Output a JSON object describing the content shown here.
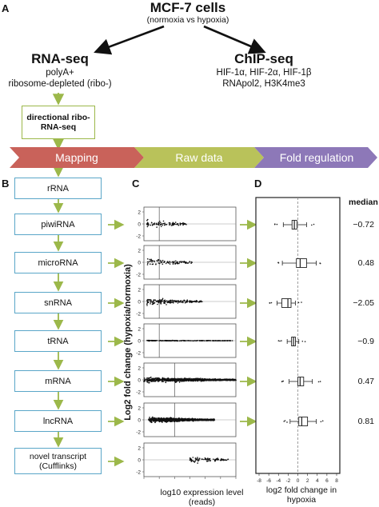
{
  "panels": {
    "a": "A",
    "b": "B",
    "c": "C",
    "d": "D"
  },
  "top": {
    "title": "MCF-7 cells",
    "subtitle": "(normoxia vs hypoxia)"
  },
  "rnaseq": {
    "title": "RNA-seq",
    "lines": [
      "polyA+",
      "ribosome-depleted (ribo-)"
    ]
  },
  "chipseq": {
    "title": "ChIP-seq",
    "lines": [
      "HIF-1α, HIF-2α, HIF-1β",
      "RNApol2, H3K4me3"
    ]
  },
  "directional_box": "directional ribo-RNA-seq",
  "band": {
    "labels": [
      "Mapping",
      "Raw data",
      "Fold regulation"
    ],
    "colors": [
      "#c9625a",
      "#b9c25a",
      "#8d78b8"
    ]
  },
  "flow": {
    "items": [
      "rRNA",
      "piwiRNA",
      "microRNA",
      "snRNA",
      "tRNA",
      "mRNA",
      "lncRNA",
      "novel transcript (Cufflinks)"
    ]
  },
  "chart_data": [
    {
      "type": "scatter",
      "panel": "C",
      "title": "",
      "xlabel": "log10 expression level (reads)",
      "ylabel": "Log2 fold change (hypoxia/normoxia)",
      "xlim": [
        0,
        6
      ],
      "xticks": [
        "0",
        "1",
        "2",
        "3",
        "4",
        "5",
        "6"
      ],
      "yticks": [
        "2",
        "0",
        "-2"
      ],
      "series": [
        {
          "category": "piwiRNA",
          "xrange": [
            0.2,
            2.8
          ],
          "density": "sparse",
          "threshold": 1
        },
        {
          "category": "microRNA",
          "xrange": [
            0.2,
            3.2
          ],
          "density": "sparse",
          "threshold": 1
        },
        {
          "category": "snRNA",
          "xrange": [
            0.2,
            3.8
          ],
          "density": "medium",
          "threshold": 1
        },
        {
          "category": "tRNA",
          "xrange": [
            0.2,
            5.8
          ],
          "density": "flat",
          "threshold": 1
        },
        {
          "category": "mRNA",
          "xrange": [
            0.0,
            6.0
          ],
          "density": "dense",
          "threshold": 2
        },
        {
          "category": "lncRNA",
          "xrange": [
            0.3,
            4.6
          ],
          "density": "dense",
          "threshold": 2
        },
        {
          "category": "novel transcript",
          "xrange": [
            3.0,
            5.5
          ],
          "density": "sparse",
          "threshold": null
        }
      ]
    },
    {
      "type": "box",
      "panel": "D",
      "xlabel": "log2 fold change in hypoxia",
      "xlim": [
        -8,
        8
      ],
      "xticks": [
        "-8",
        "-6",
        "-4",
        "-2",
        "0",
        "2",
        "4",
        "6",
        "8"
      ],
      "median_header": "median",
      "boxes": [
        {
          "category": "piwiRNA",
          "median": -0.72,
          "q1": -1.2,
          "q3": -0.2,
          "wlo": -3.0,
          "whi": 1.8
        },
        {
          "category": "microRNA",
          "median": 0.48,
          "q1": -0.3,
          "q3": 1.8,
          "wlo": -3.2,
          "whi": 3.8
        },
        {
          "category": "snRNA",
          "median": -2.05,
          "q1": -3.3,
          "q3": -1.4,
          "wlo": -4.3,
          "whi": -0.5
        },
        {
          "category": "tRNA",
          "median": -0.9,
          "q1": -1.3,
          "q3": -0.5,
          "wlo": -2.2,
          "whi": 0.2
        },
        {
          "category": "mRNA",
          "median": 0.47,
          "q1": 0.0,
          "q3": 1.2,
          "wlo": -1.8,
          "whi": 3.0
        },
        {
          "category": "lncRNA",
          "median": 0.81,
          "q1": 0.2,
          "q3": 2.0,
          "wlo": -1.6,
          "whi": 3.8
        }
      ],
      "median_labels": [
        "−0.72",
        "0.48",
        "−2.05",
        "−0.9",
        "0.47",
        "0.81"
      ]
    }
  ]
}
